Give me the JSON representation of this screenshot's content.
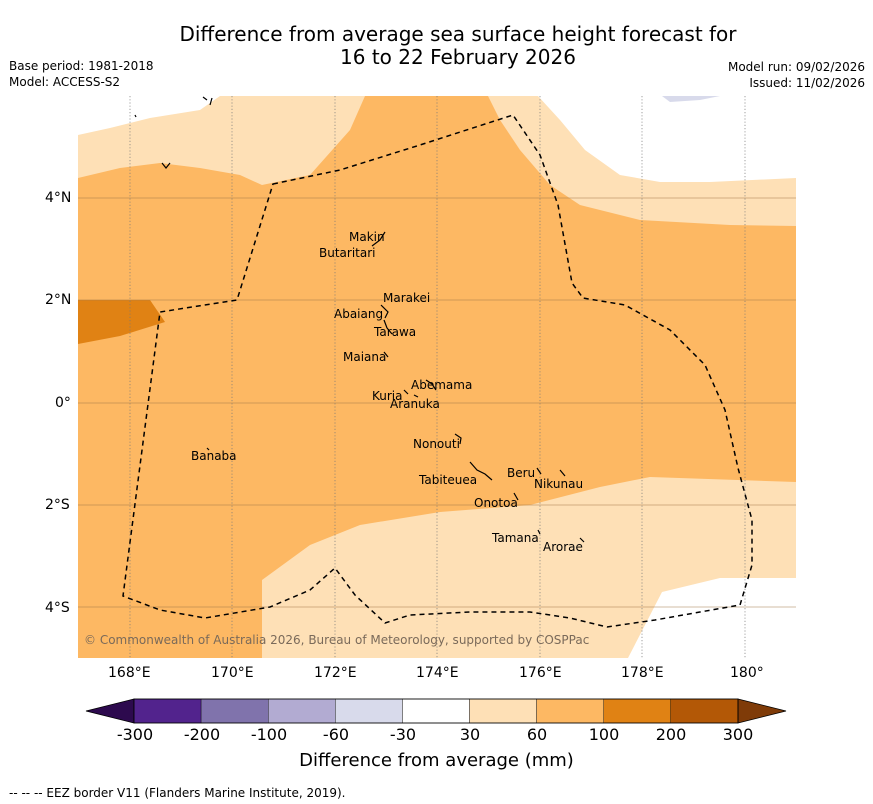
{
  "title": {
    "line1": "Difference from average sea surface height forecast for",
    "line2": "16 to 22 February 2026"
  },
  "meta": {
    "base_period": "Base period: 1981-2018",
    "model": "Model: ACCESS-S2",
    "model_run": "Model run: 09/02/2026",
    "issued": "Issued: 11/02/2026"
  },
  "axes": {
    "x_ticks": [
      "168°E",
      "170°E",
      "172°E",
      "174°E",
      "176°E",
      "178°E",
      "180°"
    ],
    "y_ticks": [
      "4°N",
      "2°N",
      "0°",
      "2°S",
      "4°S"
    ]
  },
  "places": [
    {
      "name": "Makin"
    },
    {
      "name": "Butaritari"
    },
    {
      "name": "Marakei"
    },
    {
      "name": "Abaiang"
    },
    {
      "name": "Tarawa"
    },
    {
      "name": "Maiana"
    },
    {
      "name": "Abemama"
    },
    {
      "name": "Kuria"
    },
    {
      "name": "Aranuka"
    },
    {
      "name": "Banaba"
    },
    {
      "name": "Nonouti"
    },
    {
      "name": "Tabiteuea"
    },
    {
      "name": "Beru"
    },
    {
      "name": "Nikunau"
    },
    {
      "name": "Onotoa"
    },
    {
      "name": "Tamana"
    },
    {
      "name": "Arorae"
    }
  ],
  "copyright": "© Commonwealth of Australia 2026, Bureau of Meteorology, supported by COSPPac",
  "colorbar": {
    "ticks": [
      "-300",
      "-200",
      "-100",
      "-60",
      "-30",
      "30",
      "60",
      "100",
      "200",
      "300"
    ],
    "colors": [
      "#2d0a4e",
      "#52238d",
      "#8073ac",
      "#b2abd2",
      "#d8daeb",
      "#ffffff",
      "#fee0b6",
      "#fdb863",
      "#e08214",
      "#b35806",
      "#7f3b08"
    ],
    "label": "Difference from average (mm)"
  },
  "footer": "--  --  -- EEZ border V11 (Flanders Marine Institute, 2019)."
}
